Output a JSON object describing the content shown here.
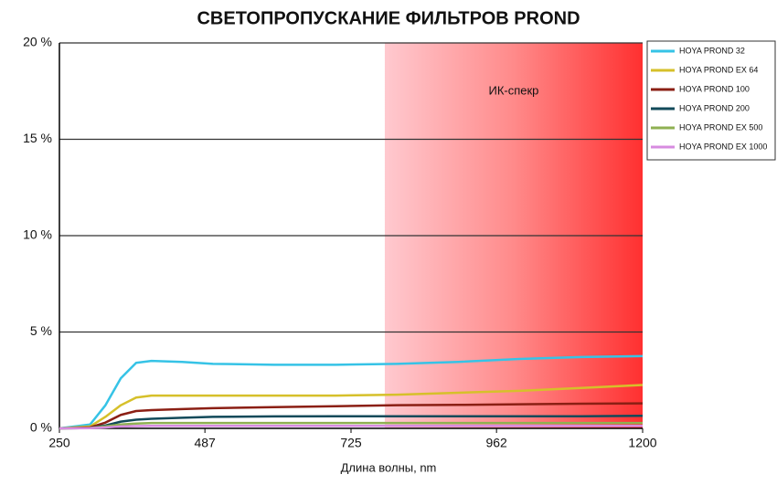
{
  "chart_data": {
    "type": "line",
    "title": "СВЕТОПРОПУСКАНИЕ ФИЛЬТРОВ PROND",
    "x_label": "Длина волны, nm",
    "annotation": "ИК-спекр",
    "ir_region": [
      780,
      1200
    ],
    "x": [
      250,
      300,
      325,
      350,
      375,
      400,
      450,
      500,
      600,
      700,
      800,
      900,
      1000,
      1100,
      1200
    ],
    "series": [
      {
        "name": "HOYA PROND 32",
        "color": "#36c3e6",
        "values": [
          0,
          0.2,
          1.2,
          2.6,
          3.4,
          3.5,
          3.45,
          3.35,
          3.3,
          3.3,
          3.35,
          3.45,
          3.6,
          3.7,
          3.75
        ]
      },
      {
        "name": "HOYA PROND EX 64",
        "color": "#d6c02a",
        "values": [
          0,
          0.1,
          0.6,
          1.2,
          1.6,
          1.7,
          1.7,
          1.7,
          1.7,
          1.7,
          1.75,
          1.85,
          1.95,
          2.1,
          2.25
        ]
      },
      {
        "name": "HOYA PROND 100",
        "color": "#8b1f14",
        "values": [
          0,
          0.05,
          0.3,
          0.7,
          0.9,
          0.95,
          1.0,
          1.05,
          1.1,
          1.15,
          1.2,
          1.22,
          1.25,
          1.28,
          1.3
        ]
      },
      {
        "name": "HOYA PROND 200",
        "color": "#124a5a",
        "values": [
          0,
          0.02,
          0.15,
          0.35,
          0.45,
          0.5,
          0.55,
          0.6,
          0.62,
          0.63,
          0.63,
          0.63,
          0.63,
          0.63,
          0.65
        ]
      },
      {
        "name": "HOYA PROND EX 500",
        "color": "#8fb052",
        "values": [
          0,
          0.02,
          0.1,
          0.2,
          0.25,
          0.28,
          0.28,
          0.28,
          0.28,
          0.28,
          0.28,
          0.28,
          0.28,
          0.28,
          0.28
        ]
      },
      {
        "name": "HOYA PROND EX 1000",
        "color": "#d78be0",
        "values": [
          0,
          0.01,
          0.05,
          0.1,
          0.12,
          0.13,
          0.13,
          0.13,
          0.13,
          0.13,
          0.13,
          0.13,
          0.13,
          0.13,
          0.13
        ]
      }
    ],
    "xlim": [
      250,
      1200
    ],
    "xticks": [
      250,
      487,
      725,
      962,
      1200
    ],
    "ylim": [
      0,
      20
    ],
    "yticks": [
      {
        "value": 0,
        "label": "0 %"
      },
      {
        "value": 5,
        "label": "5 %"
      },
      {
        "value": 10,
        "label": "10 %"
      },
      {
        "value": 15,
        "label": "15 %"
      },
      {
        "value": 20,
        "label": "20 %"
      }
    ],
    "grid": true,
    "legend": "right"
  }
}
